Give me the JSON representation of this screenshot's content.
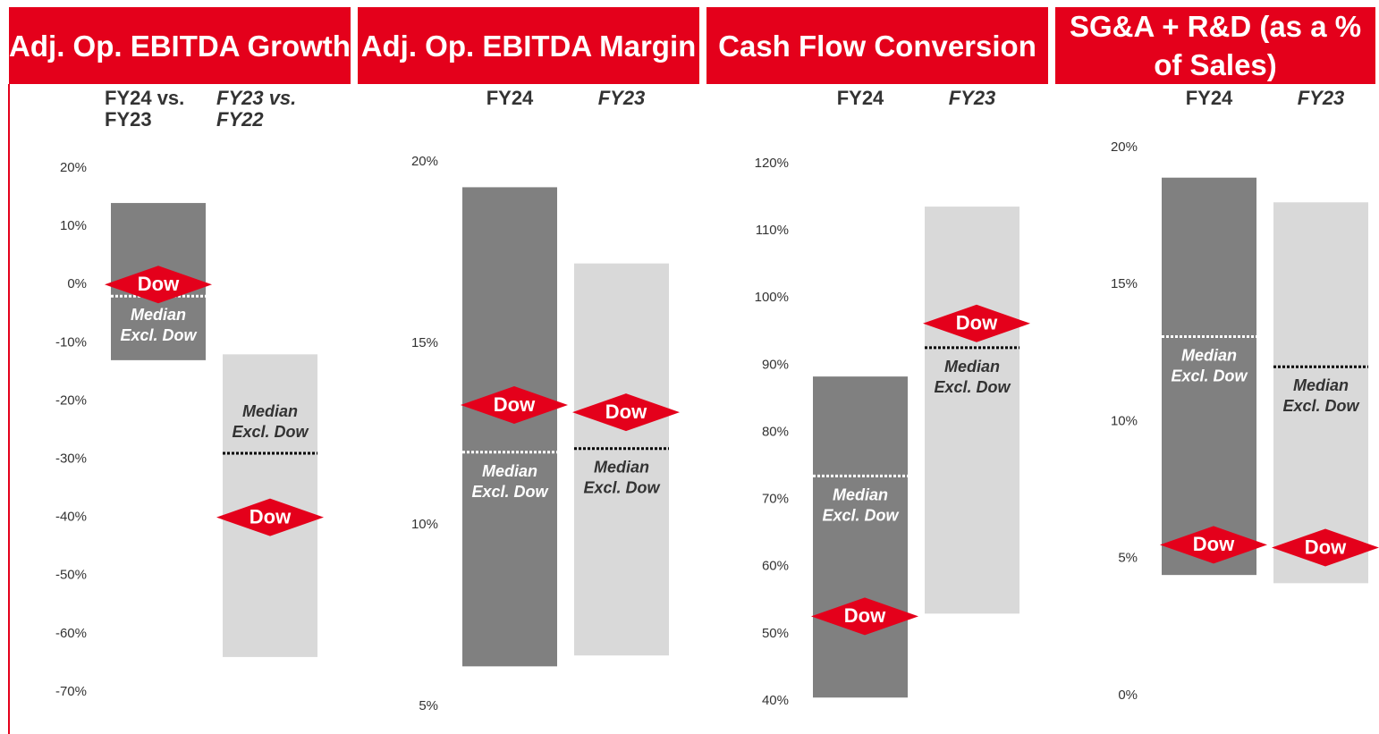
{
  "chart_data": [
    {
      "type": "range",
      "title": "Adj. Op. EBITDA Growth",
      "categories": [
        "FY24 vs. FY23",
        "FY23 vs. FY22"
      ],
      "low": [
        -13,
        -64
      ],
      "high": [
        14,
        -12
      ],
      "median": [
        -2,
        -29
      ],
      "dow": [
        0,
        -40
      ],
      "median_label": "Median Excl. Dow",
      "dow_label": "Dow",
      "colors": [
        "#808080",
        "#d9d9d9"
      ],
      "dow_color": "#e4001b",
      "ylim": [
        -70,
        20
      ],
      "yticks": [
        {
          "value": 20,
          "label": "20%"
        },
        {
          "value": 10,
          "label": "10%"
        },
        {
          "value": 0,
          "label": "0%"
        },
        {
          "value": -10,
          "label": "-10%"
        },
        {
          "value": -20,
          "label": "-20%"
        },
        {
          "value": -30,
          "label": "-30%"
        },
        {
          "value": -40,
          "label": "-40%"
        },
        {
          "value": -50,
          "label": "-50%"
        },
        {
          "value": -60,
          "label": "-60%"
        },
        {
          "value": -70,
          "label": "-70%"
        }
      ]
    },
    {
      "type": "range",
      "title": "Adj. Op. EBITDA Margin",
      "categories": [
        "FY24",
        "FY23"
      ],
      "low": [
        6.1,
        6.4
      ],
      "high": [
        19.3,
        17.2
      ],
      "median": [
        12.0,
        12.1
      ],
      "dow": [
        13.3,
        13.1
      ],
      "median_label": "Median Excl. Dow",
      "dow_label": "Dow",
      "colors": [
        "#808080",
        "#d9d9d9"
      ],
      "dow_color": "#e4001b",
      "ylim": [
        5,
        20
      ],
      "yticks": [
        {
          "value": 20,
          "label": "20%"
        },
        {
          "value": 15,
          "label": "15%"
        },
        {
          "value": 10,
          "label": "10%"
        },
        {
          "value": 5,
          "label": "5%"
        }
      ]
    },
    {
      "type": "range",
      "title": "Cash Flow Conversion",
      "categories": [
        "FY24",
        "FY23"
      ],
      "low": [
        40.5,
        53
      ],
      "high": [
        88.3,
        113.6
      ],
      "median": [
        73.5,
        92.6
      ],
      "dow": [
        52.6,
        96.2
      ],
      "median_label": "Median Excl. Dow",
      "dow_label": "Dow",
      "colors": [
        "#808080",
        "#d9d9d9"
      ],
      "dow_color": "#e4001b",
      "ylim": [
        40,
        120
      ],
      "yticks": [
        {
          "value": 120,
          "label": "120%"
        },
        {
          "value": 110,
          "label": "110%"
        },
        {
          "value": 100,
          "label": "100%"
        },
        {
          "value": 90,
          "label": "90%"
        },
        {
          "value": 80,
          "label": "80%"
        },
        {
          "value": 70,
          "label": "70%"
        },
        {
          "value": 60,
          "label": "60%"
        },
        {
          "value": 50,
          "label": "50%"
        },
        {
          "value": 40,
          "label": "40%"
        }
      ]
    },
    {
      "type": "range",
      "title": "SG&A + R&D (as a % of Sales)",
      "categories": [
        "FY24",
        "FY23"
      ],
      "low": [
        4.4,
        4.1
      ],
      "high": [
        18.9,
        18.0
      ],
      "median": [
        13.1,
        12.0
      ],
      "dow": [
        5.5,
        5.4
      ],
      "median_label": "Median Excl. Dow",
      "dow_label": "Dow",
      "colors": [
        "#808080",
        "#d9d9d9"
      ],
      "dow_color": "#e4001b",
      "ylim": [
        0,
        20
      ],
      "yticks": [
        {
          "value": 20,
          "label": "20%"
        },
        {
          "value": 15,
          "label": "15%"
        },
        {
          "value": 10,
          "label": "10%"
        },
        {
          "value": 5,
          "label": "5%"
        },
        {
          "value": 0,
          "label": "0%"
        }
      ]
    }
  ]
}
